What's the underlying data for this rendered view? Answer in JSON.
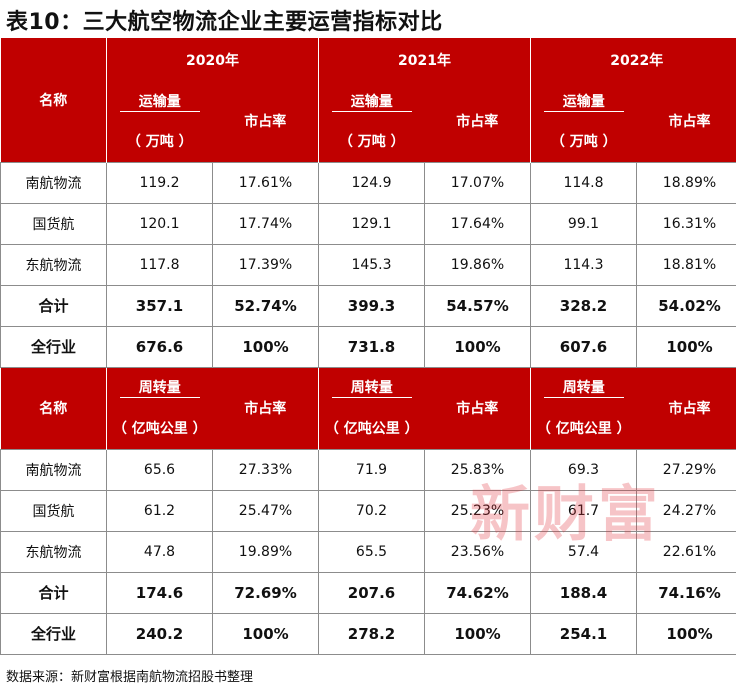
{
  "title": "表10：三大航空物流企业主要运营指标对比",
  "source": "数据来源：新财富根据南航物流招股书整理",
  "watermark": "新财富",
  "colors": {
    "header_bg": "#c00000",
    "header_text": "#ffffff",
    "watermark": "#e0303a"
  },
  "years": [
    "2020年",
    "2021年",
    "2022年"
  ],
  "name_header": "名称",
  "share_label": "市占率",
  "section1": {
    "metric_label": "运输量",
    "unit": "（ 万吨 ）",
    "rows": [
      {
        "name": "南航物流",
        "cells": [
          "119.2",
          "17.61%",
          "124.9",
          "17.07%",
          "114.8",
          "18.89%"
        ]
      },
      {
        "name": "国货航",
        "cells": [
          "120.1",
          "17.74%",
          "129.1",
          "17.64%",
          "99.1",
          "16.31%"
        ]
      },
      {
        "name": "东航物流",
        "cells": [
          "117.8",
          "17.39%",
          "145.3",
          "19.86%",
          "114.3",
          "18.81%"
        ]
      },
      {
        "name": "合计",
        "cells": [
          "357.1",
          "52.74%",
          "399.3",
          "54.57%",
          "328.2",
          "54.02%"
        ]
      },
      {
        "name": "全行业",
        "cells": [
          "676.6",
          "100%",
          "731.8",
          "100%",
          "607.6",
          "100%"
        ]
      }
    ]
  },
  "section2": {
    "metric_label": "周转量",
    "unit": "（ 亿吨公里 ）",
    "rows": [
      {
        "name": "南航物流",
        "cells": [
          "65.6",
          "27.33%",
          "71.9",
          "25.83%",
          "69.3",
          "27.29%"
        ]
      },
      {
        "name": "国货航",
        "cells": [
          "61.2",
          "25.47%",
          "70.2",
          "25.23%",
          "61.7",
          "24.27%"
        ]
      },
      {
        "name": "东航物流",
        "cells": [
          "47.8",
          "19.89%",
          "65.5",
          "23.56%",
          "57.4",
          "22.61%"
        ]
      },
      {
        "name": "合计",
        "cells": [
          "174.6",
          "72.69%",
          "207.6",
          "74.62%",
          "188.4",
          "74.16%"
        ]
      },
      {
        "name": "全行业",
        "cells": [
          "240.2",
          "100%",
          "278.2",
          "100%",
          "254.1",
          "100%"
        ]
      }
    ]
  }
}
